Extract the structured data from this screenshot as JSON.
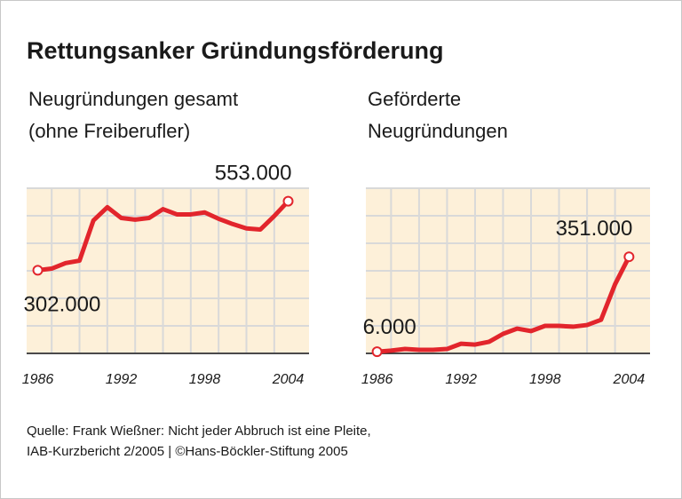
{
  "title": "Rettungsanker Gründungsförderung",
  "source": [
    "Quelle: Frank Wießner: Nicht jeder Abbruch ist eine Pleite,",
    "IAB-Kurzbericht 2/2005 | ©Hans-Böckler-Stiftung 2005"
  ],
  "chart_data": [
    {
      "type": "line",
      "subtitle": [
        "Neugründungen gesamt",
        "(ohne Freiberufler)"
      ],
      "x": [
        1986,
        1987,
        1988,
        1989,
        1990,
        1991,
        1992,
        1993,
        1994,
        1995,
        1996,
        1997,
        1998,
        1999,
        2000,
        2001,
        2002,
        2003,
        2004
      ],
      "values": [
        302000,
        308000,
        328000,
        337000,
        483000,
        531000,
        492000,
        486000,
        492000,
        524000,
        505000,
        505000,
        512000,
        489000,
        470000,
        454000,
        450000,
        499000,
        553000
      ],
      "value_labels": [
        "302.000",
        null,
        null,
        null,
        null,
        null,
        null,
        null,
        null,
        null,
        null,
        null,
        null,
        null,
        null,
        null,
        null,
        null,
        "553.000"
      ],
      "color": "#e2252c",
      "xlim": [
        1985.2,
        2005.5
      ],
      "xticks": [
        1986,
        1992,
        1998,
        2004
      ],
      "ylim": [
        0,
        600000
      ],
      "yticks": [
        0,
        100000,
        200000,
        300000,
        400000,
        500000,
        600000
      ],
      "grid": true
    },
    {
      "type": "line",
      "subtitle": [
        "Geförderte",
        "Neugründungen"
      ],
      "x": [
        1986,
        1987,
        1988,
        1989,
        1990,
        1991,
        1992,
        1993,
        1994,
        1995,
        1996,
        1997,
        1998,
        1999,
        2000,
        2001,
        2002,
        2003,
        2004
      ],
      "values": [
        6000,
        10000,
        16000,
        13000,
        13000,
        16000,
        35000,
        32000,
        42000,
        71000,
        90000,
        81000,
        100000,
        100000,
        97000,
        103000,
        122000,
        251000,
        351000
      ],
      "value_labels": [
        "6.000",
        null,
        null,
        null,
        null,
        null,
        null,
        null,
        null,
        null,
        null,
        null,
        null,
        null,
        null,
        null,
        null,
        null,
        "351.000"
      ],
      "color": "#e2252c",
      "xlim": [
        1985.2,
        2005.5
      ],
      "xticks": [
        1986,
        1992,
        1998,
        2004
      ],
      "ylim": [
        0,
        600000
      ],
      "yticks": [
        0,
        100000,
        200000,
        300000,
        400000,
        500000,
        600000
      ],
      "grid": true
    }
  ]
}
